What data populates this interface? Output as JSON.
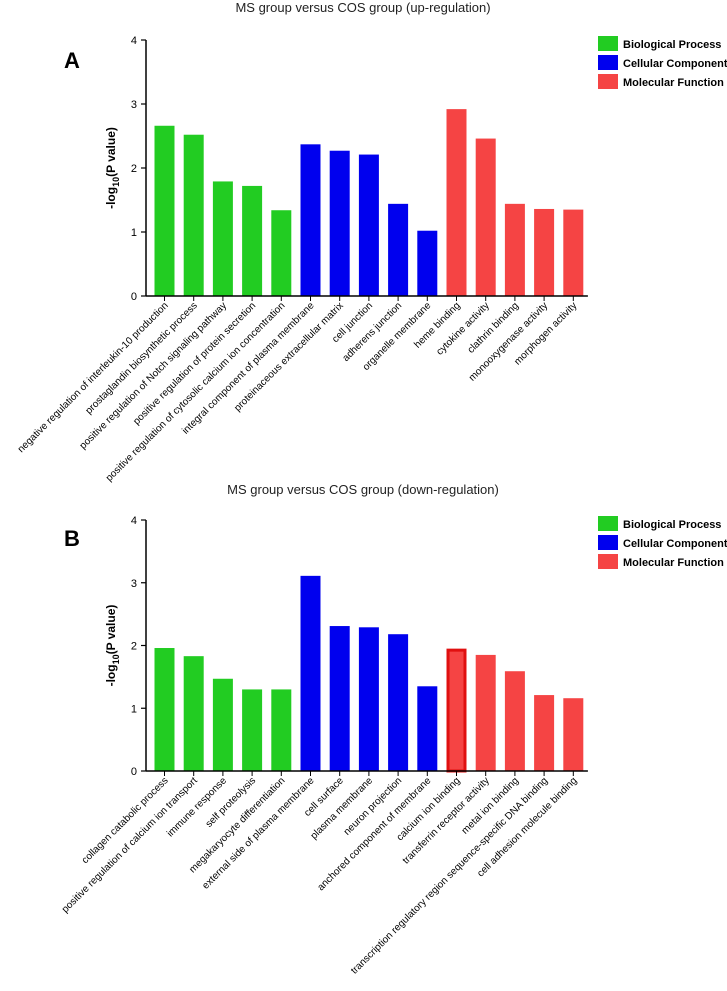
{
  "chart_data": [
    {
      "type": "bar",
      "panel": "A",
      "title": "MS group versus COS group (up-regulation)",
      "ylabel": "-log",
      "ylabel_sub": "10",
      "ylabel_tail": "(P value)",
      "ylim": [
        0,
        4
      ],
      "yticks": [
        "0",
        "1",
        "2",
        "3",
        "4"
      ],
      "legend": [
        {
          "name": "Biological Process",
          "color": "#22cc22"
        },
        {
          "name": "Cellular Component",
          "color": "#0000ee"
        },
        {
          "name": "Molecular Function",
          "color": "#f54444"
        }
      ],
      "categories": [
        "negative regulation of interleukin-10 production",
        "prostaglandin biosynthetic process",
        "positive regulation of Notch signaling pathway",
        "positive regulation of protein secretion",
        "positive regulation of cytosolic calcium ion concentration",
        "integral component of plasma membrane",
        "proteinaceous extracellular matrix",
        "cell junction",
        "adherens junction",
        "organelle membrane",
        "heme binding",
        "cytokine activity",
        "clathrin binding",
        "monooxygenase activity",
        "morphogen activity"
      ],
      "values": [
        2.66,
        2.52,
        1.79,
        1.72,
        1.34,
        2.37,
        2.27,
        2.21,
        1.44,
        1.02,
        2.92,
        2.46,
        1.44,
        1.36,
        1.35
      ],
      "groups": [
        0,
        0,
        0,
        0,
        0,
        1,
        1,
        1,
        1,
        1,
        2,
        2,
        2,
        2,
        2
      ]
    },
    {
      "type": "bar",
      "panel": "B",
      "title": "MS group versus COS group (down-regulation)",
      "ylabel": "-log",
      "ylabel_sub": "10",
      "ylabel_tail": "(P value)",
      "ylim": [
        0,
        4
      ],
      "yticks": [
        "0",
        "1",
        "2",
        "3",
        "4"
      ],
      "legend": [
        {
          "name": "Biological Process",
          "color": "#22cc22"
        },
        {
          "name": "Cellular Component",
          "color": "#0000ee"
        },
        {
          "name": "Molecular Function",
          "color": "#f54444"
        }
      ],
      "categories": [
        "collagen catabolic process",
        "positive regulation of calcium ion transport",
        "immune response",
        "self proteolysis",
        "megakaryocyte differentiation",
        "external side of plasma membrane",
        "cell surface",
        "plasma membrane",
        "neuron projection",
        "anchored component of membrane",
        "calcium ion binding",
        "transferrin receptor activity",
        "metal ion binding",
        "transcription regulatory region sequence-specific DNA binding",
        "cell adhesion molecule binding"
      ],
      "values": [
        1.96,
        1.83,
        1.47,
        1.3,
        1.3,
        3.11,
        2.31,
        2.29,
        2.18,
        1.35,
        1.95,
        1.85,
        1.59,
        1.21,
        1.16
      ],
      "groups": [
        0,
        0,
        0,
        0,
        0,
        1,
        1,
        1,
        1,
        1,
        2,
        2,
        2,
        2,
        2
      ],
      "highlighted_index": 10,
      "highlight_color": "#e01010"
    }
  ]
}
